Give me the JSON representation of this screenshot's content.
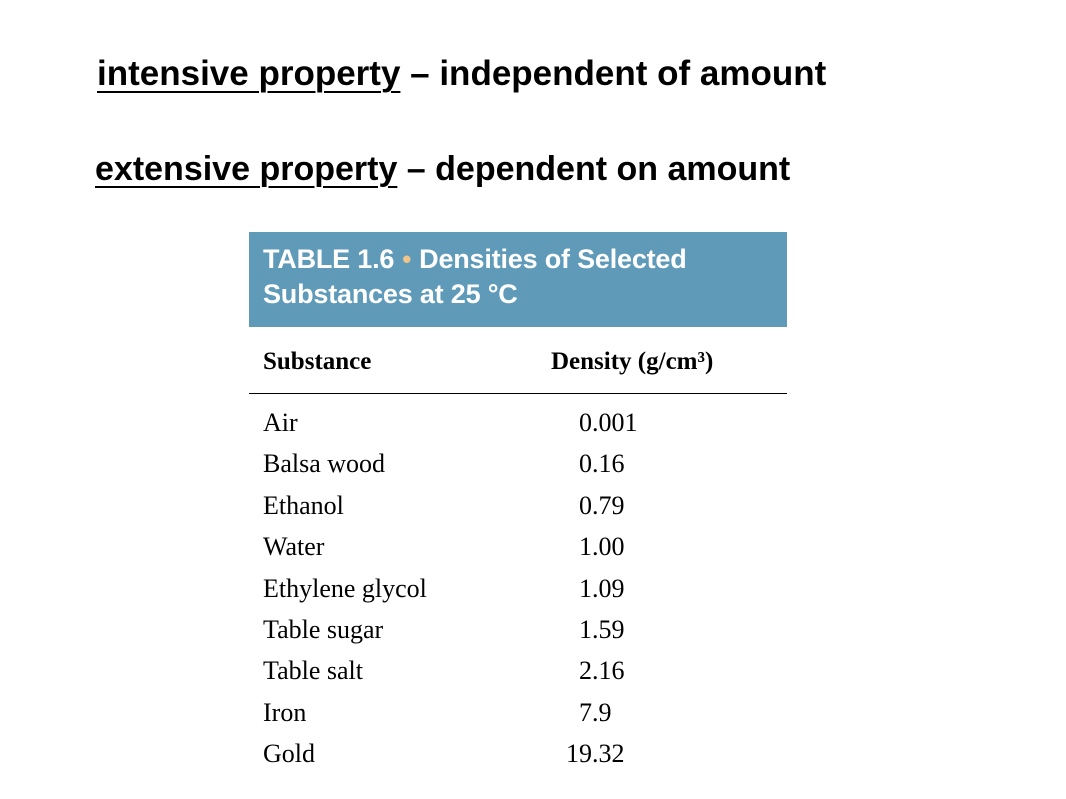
{
  "definitions": [
    {
      "term": "intensive property",
      "description": " – independent of amount"
    },
    {
      "term": "extensive property",
      "description": " – dependent on amount"
    }
  ],
  "table": {
    "title_prefix": "TABLE 1.6",
    "bullet": "•",
    "title_line1": "Densities of Selected",
    "title_line2": "Substances at 25 °C",
    "header_color": "#5f9ab8",
    "columns": [
      "Substance",
      "Density (g/cm³)"
    ],
    "rows": [
      {
        "substance": "Air",
        "density": "0.001"
      },
      {
        "substance": "Balsa wood",
        "density": "0.16"
      },
      {
        "substance": "Ethanol",
        "density": "0.79"
      },
      {
        "substance": "Water",
        "density": "1.00"
      },
      {
        "substance": "Ethylene glycol",
        "density": "1.09"
      },
      {
        "substance": "Table sugar",
        "density": "1.59"
      },
      {
        "substance": "Table salt",
        "density": "2.16"
      },
      {
        "substance": "Iron",
        "density": "7.9"
      },
      {
        "substance": "Gold",
        "density": "19.32"
      }
    ]
  }
}
